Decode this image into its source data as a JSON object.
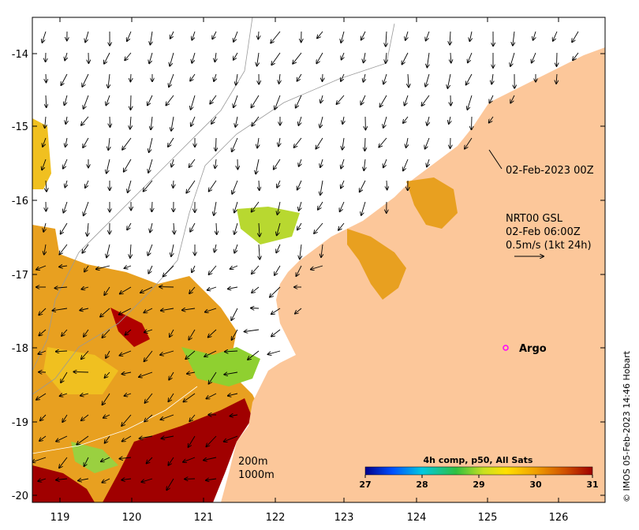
{
  "map": {
    "lon_ticks": [
      "119",
      "120",
      "121",
      "122",
      "123",
      "124",
      "125",
      "126"
    ],
    "lat_ticks": [
      "-14",
      "-15",
      "-16",
      "-17",
      "-18",
      "-19",
      "-20"
    ],
    "time_label": "02-Feb-2023 00Z",
    "current": {
      "line1": "NRT00 GSL",
      "line2": "02-Feb 06:00Z",
      "line3": "0.5m/s (1kt 24h)"
    },
    "argo_label": "Argo",
    "isobaths": {
      "line1": "200m",
      "line2": "1000m"
    },
    "colorbar": {
      "title": "4h comp, p50, All Sats",
      "ticks": [
        "27",
        "28",
        "29",
        "30",
        "31"
      ],
      "colors": [
        "#00008b",
        "#0050ff",
        "#00d0d0",
        "#40c040",
        "#c0e020",
        "#ffe000",
        "#f0a000",
        "#d06000",
        "#a00000"
      ]
    },
    "credit": "© IMOS 05-Feb-2023 14:46 Hobart",
    "colors": {
      "land": "#fcc79a",
      "warm": "#a00000",
      "argo": "#ff00ff"
    }
  }
}
